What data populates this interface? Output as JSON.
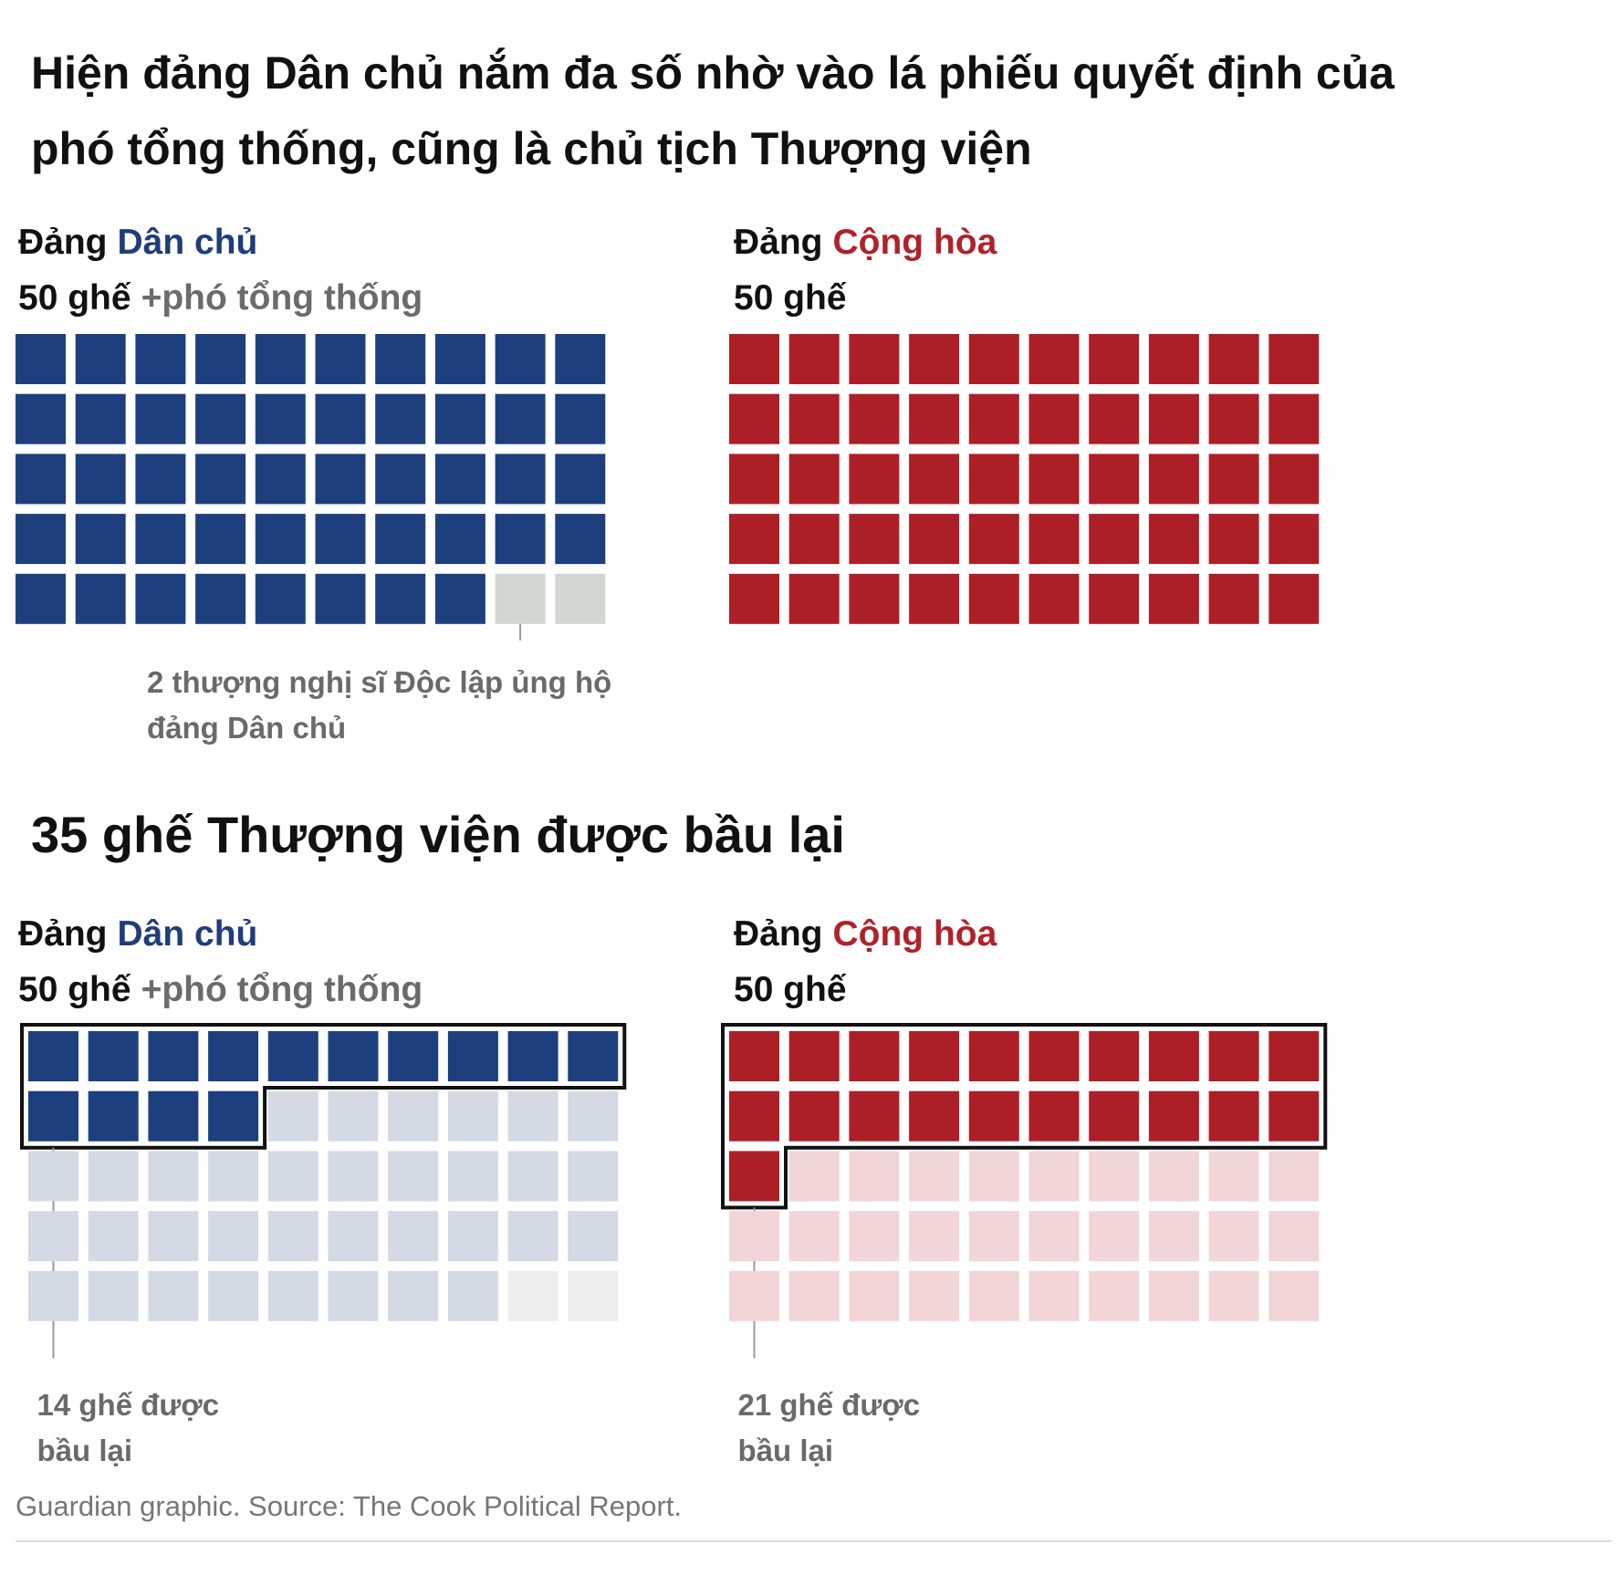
{
  "title": [
    "Hiện đảng Dân chủ nắm đa số nhờ vào lá phiếu quyết định của",
    "phó tổng thống, cũng là chủ tịch Thượng viện"
  ],
  "chart_data": [
    {
      "type": "waffle",
      "columns": 10,
      "outline_first": false,
      "panels": [
        {
          "prefix": "Đảng",
          "party": "Dân chủ",
          "party_color": "#1f3d7b",
          "seats": "50 ghế",
          "extra": "+phó tổng thống",
          "segments": [
            {
              "value": 48,
              "color": "#1d3f7e"
            },
            {
              "value": 2,
              "color": "#d3d7d2",
              "annotation": [
                "2 thượng nghị sĩ Độc lập ủng hộ",
                "đảng Dân chủ"
              ]
            }
          ]
        },
        {
          "prefix": "Đảng",
          "party": "Cộng hòa",
          "party_color": "#b0222a",
          "seats": "50 ghế",
          "segments": [
            {
              "value": 50,
              "color": "#ad1f27"
            }
          ]
        }
      ]
    },
    {
      "type": "waffle",
      "title": "35 ghế Thượng viện được bầu lại",
      "columns": 10,
      "outline_first": true,
      "panels": [
        {
          "prefix": "Đảng",
          "party": "Dân chủ",
          "party_color": "#1f3d7b",
          "seats": "50 ghế",
          "extra": "+phó tổng thống",
          "segments": [
            {
              "value": 14,
              "color": "#1d3f7e",
              "annotation": [
                "14 ghế được",
                "bầu lại"
              ]
            },
            {
              "value": 34,
              "color": "#d3dae6"
            },
            {
              "value": 2,
              "color": "#eceeeb"
            }
          ]
        },
        {
          "prefix": "Đảng",
          "party": "Cộng hòa",
          "party_color": "#b0222a",
          "seats": "50 ghế",
          "segments": [
            {
              "value": 21,
              "color": "#ad1f27",
              "annotation": [
                "21 ghế được",
                "bầu lại"
              ]
            },
            {
              "value": 29,
              "color": "#f1d5d7"
            }
          ]
        }
      ]
    }
  ],
  "source": "Guardian graphic. Source: The Cook Political Report."
}
